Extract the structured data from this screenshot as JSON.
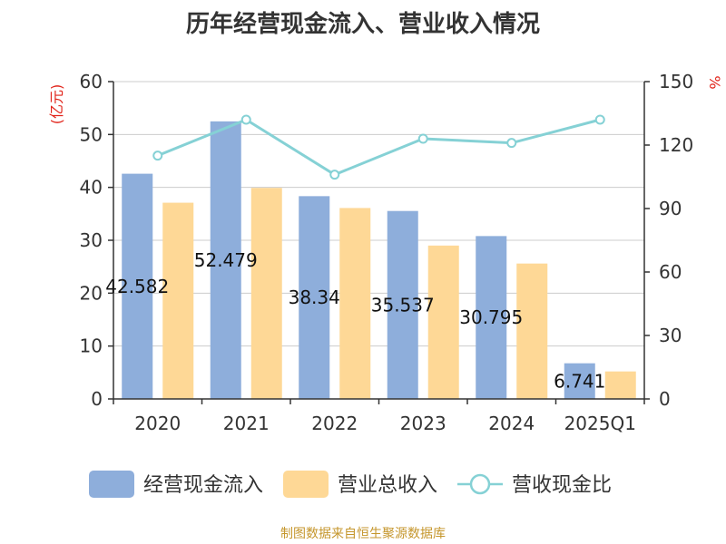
{
  "chart_data": {
    "type": "bar",
    "title": "历年经营现金流入、营业收入情况",
    "categories": [
      "2020",
      "2021",
      "2022",
      "2023",
      "2024",
      "2025Q1"
    ],
    "y_left": {
      "label": "(亿元)",
      "ticks": [
        "0",
        "10",
        "20",
        "30",
        "40",
        "50",
        "60"
      ],
      "min": 0,
      "max": 60
    },
    "y_right": {
      "label": "%",
      "ticks": [
        "0",
        "30",
        "60",
        "90",
        "120",
        "150"
      ],
      "min": 0,
      "max": 150
    },
    "series": [
      {
        "name": "经营现金流入",
        "type": "bar",
        "axis": "left",
        "color": "#8eaedb",
        "values": [
          42.582,
          52.479,
          38.34,
          35.537,
          30.795,
          6.741
        ],
        "labels": [
          "42.582",
          "52.479",
          "38.34",
          "35.537",
          "30.795",
          "6.741"
        ]
      },
      {
        "name": "营业总收入",
        "type": "bar",
        "axis": "left",
        "color": "#fed896",
        "values": [
          37.1,
          39.9,
          36.1,
          29.0,
          25.6,
          5.2
        ]
      },
      {
        "name": "营收现金比",
        "type": "line",
        "axis": "right",
        "color": "#85d1d5",
        "values": [
          115,
          132,
          106,
          123,
          121,
          132
        ]
      }
    ],
    "grid": true,
    "legend_position": "bottom"
  },
  "footer": {
    "source": "制图数据来自恒生聚源数据库"
  }
}
